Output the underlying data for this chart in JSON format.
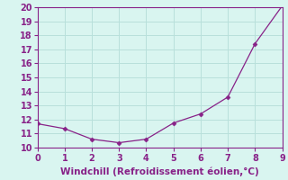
{
  "x": [
    0,
    1,
    2,
    3,
    4,
    5,
    6,
    7,
    8,
    9
  ],
  "y": [
    11.7,
    11.35,
    10.6,
    10.35,
    10.6,
    11.75,
    12.4,
    13.6,
    17.4,
    20.1
  ],
  "line_color": "#882288",
  "marker": "D",
  "marker_size": 2.5,
  "xlabel": "Windchill (Refroidissement éolien,°C)",
  "ylim": [
    10,
    20
  ],
  "xlim": [
    0,
    9
  ],
  "yticks": [
    10,
    11,
    12,
    13,
    14,
    15,
    16,
    17,
    18,
    19,
    20
  ],
  "xticks": [
    0,
    1,
    2,
    3,
    4,
    5,
    6,
    7,
    8,
    9
  ],
  "bg_color": "#d9f5f0",
  "grid_color": "#b8e0db",
  "label_color": "#882288",
  "tick_color": "#882288",
  "spine_color": "#882288",
  "font_size": 7,
  "xlabel_font_size": 7.5
}
